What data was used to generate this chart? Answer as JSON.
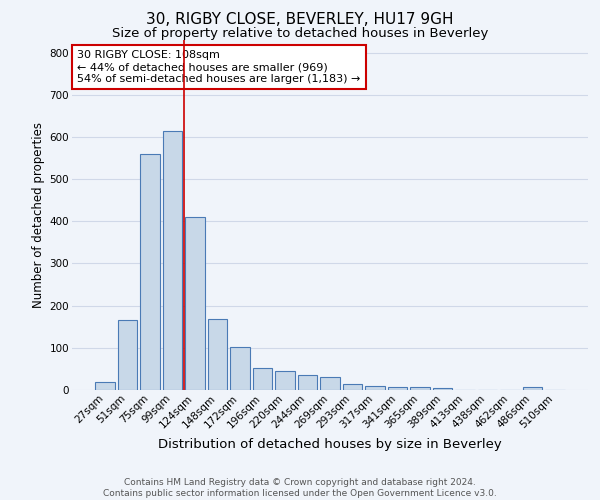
{
  "title1": "30, RIGBY CLOSE, BEVERLEY, HU17 9GH",
  "title2": "Size of property relative to detached houses in Beverley",
  "xlabel": "Distribution of detached houses by size in Beverley",
  "ylabel": "Number of detached properties",
  "bar_labels": [
    "27sqm",
    "51sqm",
    "75sqm",
    "99sqm",
    "124sqm",
    "148sqm",
    "172sqm",
    "196sqm",
    "220sqm",
    "244sqm",
    "269sqm",
    "293sqm",
    "317sqm",
    "341sqm",
    "365sqm",
    "389sqm",
    "413sqm",
    "438sqm",
    "462sqm",
    "486sqm",
    "510sqm"
  ],
  "bar_values": [
    20,
    165,
    560,
    615,
    410,
    168,
    102,
    53,
    44,
    35,
    30,
    15,
    10,
    8,
    7,
    5,
    0,
    0,
    0,
    8,
    0
  ],
  "bar_color": "#c8d8e8",
  "bar_edge_color": "#4a7ab5",
  "grid_color": "#d0d8e8",
  "background_color": "#f0f4fa",
  "vline_color": "#cc0000",
  "vline_x": 3.5,
  "annotation_text": "30 RIGBY CLOSE: 108sqm\n← 44% of detached houses are smaller (969)\n54% of semi-detached houses are larger (1,183) →",
  "annotation_box_color": "#ffffff",
  "annotation_box_edge": "#cc0000",
  "ylim": [
    0,
    830
  ],
  "yticks": [
    0,
    100,
    200,
    300,
    400,
    500,
    600,
    700,
    800
  ],
  "footer_text": "Contains HM Land Registry data © Crown copyright and database right 2024.\nContains public sector information licensed under the Open Government Licence v3.0.",
  "title1_fontsize": 11,
  "title2_fontsize": 9.5,
  "xlabel_fontsize": 9.5,
  "ylabel_fontsize": 8.5,
  "tick_fontsize": 7.5,
  "annotation_fontsize": 8,
  "footer_fontsize": 6.5
}
